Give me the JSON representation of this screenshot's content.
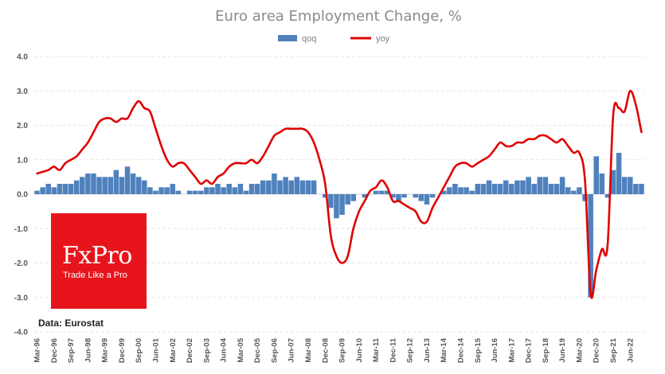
{
  "brand": {
    "name": "FxPro",
    "tagline": "Trade Like a Pro",
    "color": "#e8141b"
  },
  "source_label": "Data: Eurostat",
  "chart_data": {
    "type": "bar+line",
    "title": "Euro area Employment Change, %",
    "xlabel": "",
    "ylabel": "",
    "ylim": [
      -4.0,
      4.0
    ],
    "yticks": [
      "4.0",
      "3.0",
      "2.0",
      "1.0",
      "0.0",
      "-1.0",
      "-2.0",
      "-3.0",
      "-4.0"
    ],
    "ytick_values": [
      4,
      3,
      2,
      1,
      0,
      -1,
      -2,
      -3,
      -4
    ],
    "grid": true,
    "legend_position": "top",
    "x_tick_labels": [
      "Mar-96",
      "Dec-96",
      "Sep-97",
      "Jun-98",
      "Mar-99",
      "Dec-99",
      "Sep-00",
      "Jun-01",
      "Mar-02",
      "Dec-02",
      "Sep-03",
      "Jun-04",
      "Mar-05",
      "Dec-05",
      "Sep-06",
      "Jun-07",
      "Mar-08",
      "Dec-08",
      "Sep-09",
      "Jun-10",
      "Mar-11",
      "Dec-11",
      "Sep-12",
      "Jun-13",
      "Mar-14",
      "Dec-14",
      "Sep-15",
      "Jun-16",
      "Mar-17",
      "Dec-17",
      "Sep-18",
      "Jun-19",
      "Mar-20",
      "Dec-20",
      "Sep-21",
      "Jun-22"
    ],
    "start_quarter": "Mar-96",
    "end_quarter": "Sep-22",
    "series": [
      {
        "name": "qoq",
        "kind": "bar",
        "color": "#4f81bd",
        "values": [
          0.1,
          0.2,
          0.3,
          0.2,
          0.3,
          0.3,
          0.3,
          0.4,
          0.5,
          0.6,
          0.6,
          0.5,
          0.5,
          0.5,
          0.7,
          0.5,
          0.8,
          0.6,
          0.5,
          0.4,
          0.2,
          0.1,
          0.2,
          0.2,
          0.3,
          0.1,
          0.0,
          0.1,
          0.1,
          0.1,
          0.2,
          0.2,
          0.3,
          0.2,
          0.3,
          0.2,
          0.3,
          0.1,
          0.3,
          0.3,
          0.4,
          0.4,
          0.6,
          0.4,
          0.5,
          0.4,
          0.5,
          0.4,
          0.4,
          0.4,
          0.0,
          -0.1,
          -0.4,
          -0.7,
          -0.6,
          -0.3,
          -0.2,
          0.0,
          -0.1,
          0.0,
          0.1,
          0.1,
          0.1,
          -0.1,
          -0.2,
          -0.1,
          0.0,
          -0.1,
          -0.2,
          -0.3,
          -0.1,
          0.0,
          0.1,
          0.2,
          0.3,
          0.2,
          0.2,
          0.1,
          0.3,
          0.3,
          0.4,
          0.3,
          0.3,
          0.4,
          0.3,
          0.4,
          0.4,
          0.5,
          0.3,
          0.5,
          0.5,
          0.3,
          0.3,
          0.5,
          0.2,
          0.1,
          0.2,
          -0.2,
          -3.0,
          1.1,
          0.6,
          -0.1,
          0.7,
          1.2,
          0.5,
          0.5,
          0.3,
          0.3
        ]
      },
      {
        "name": "yoy",
        "kind": "line",
        "color": "#e00000",
        "values": [
          0.6,
          0.65,
          0.7,
          0.8,
          0.7,
          0.9,
          1.0,
          1.1,
          1.3,
          1.5,
          1.8,
          2.1,
          2.2,
          2.2,
          2.1,
          2.2,
          2.2,
          2.5,
          2.7,
          2.5,
          2.4,
          1.9,
          1.4,
          1.0,
          0.8,
          0.9,
          0.9,
          0.7,
          0.5,
          0.3,
          0.4,
          0.3,
          0.5,
          0.6,
          0.8,
          0.9,
          0.9,
          0.9,
          1.0,
          0.9,
          1.1,
          1.4,
          1.7,
          1.8,
          1.9,
          1.9,
          1.9,
          1.9,
          1.8,
          1.5,
          1.0,
          0.3,
          -1.2,
          -1.8,
          -2.0,
          -1.8,
          -1.0,
          -0.5,
          -0.2,
          0.1,
          0.2,
          0.4,
          0.2,
          -0.2,
          -0.2,
          -0.3,
          -0.4,
          -0.5,
          -0.8,
          -0.8,
          -0.4,
          -0.1,
          0.2,
          0.5,
          0.8,
          0.9,
          0.9,
          0.8,
          0.9,
          1.0,
          1.1,
          1.3,
          1.5,
          1.4,
          1.4,
          1.5,
          1.5,
          1.6,
          1.6,
          1.7,
          1.7,
          1.6,
          1.5,
          1.6,
          1.4,
          1.2,
          1.2,
          0.4,
          -2.9,
          -2.2,
          -1.6,
          -1.5,
          2.3,
          2.5,
          2.4,
          3.0,
          2.6,
          1.8
        ]
      }
    ]
  }
}
